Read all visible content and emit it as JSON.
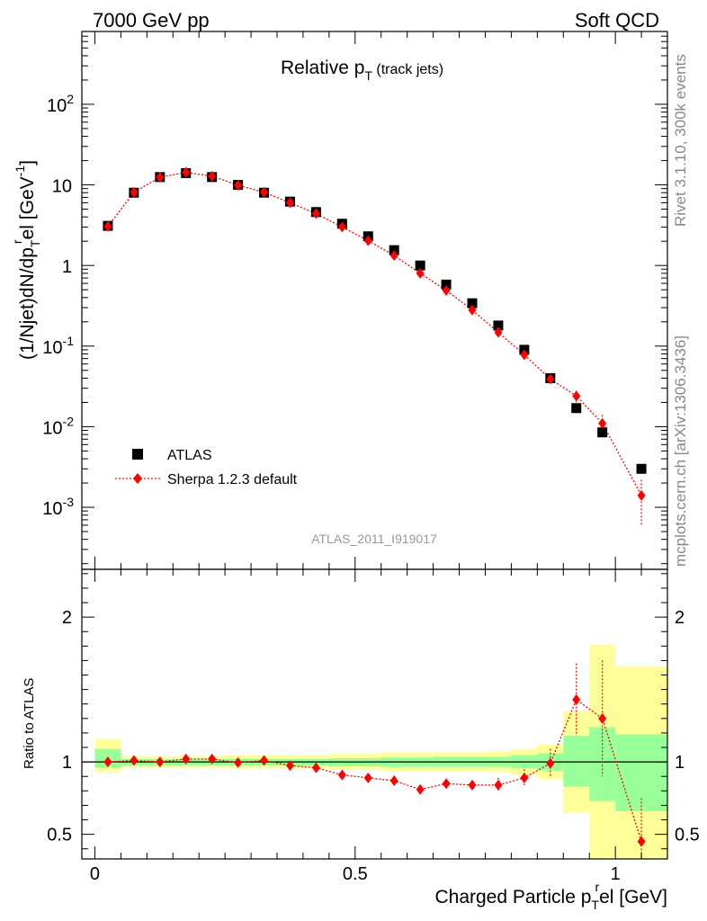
{
  "header": {
    "left": "7000 GeV pp",
    "right": "Soft QCD"
  },
  "side_labels": {
    "rivet": "Rivet 3.1.10,  300k events",
    "mcplots": "mcplots.cern.ch [arXiv:1306.3436]"
  },
  "chart_data": [
    {
      "type": "scatter",
      "title": {
        "main": "Relative p",
        "sub": "T",
        "suffix": " (track jets)"
      },
      "ylabel": {
        "p1": "(1/Njet)dN/dp",
        "sub": "T",
        "sup": "r",
        "p2": "el [GeV",
        "unit_sup": "-1",
        "p3": "]"
      },
      "yscale": "log",
      "ylim": [
        0.00017,
        800
      ],
      "xlim": [
        -0.025,
        1.1
      ],
      "y_ticks": [
        {
          "value": 0.001,
          "base": "10",
          "exp": "-3"
        },
        {
          "value": 0.01,
          "base": "10",
          "exp": "-2"
        },
        {
          "value": 0.1,
          "base": "10",
          "exp": "-1"
        },
        {
          "value": 1,
          "base": "1",
          "exp": ""
        },
        {
          "value": 10,
          "base": "10",
          "exp": ""
        },
        {
          "value": 100,
          "base": "10",
          "exp": "2"
        }
      ],
      "analysis_label": "ATLAS_2011_I919017",
      "legend": {
        "position": "lower-left",
        "entries": [
          "ATLAS",
          "Sherpa 1.2.3 default"
        ]
      },
      "series": [
        {
          "name": "ATLAS",
          "color": "#000000",
          "marker": "square",
          "x": [
            0.025,
            0.075,
            0.125,
            0.175,
            0.225,
            0.275,
            0.325,
            0.375,
            0.425,
            0.475,
            0.525,
            0.575,
            0.625,
            0.675,
            0.725,
            0.775,
            0.825,
            0.875,
            0.925,
            0.975,
            1.05
          ],
          "y": [
            3.1,
            8.0,
            12.5,
            14.0,
            12.5,
            10.0,
            8.0,
            6.2,
            4.6,
            3.3,
            2.3,
            1.55,
            1.0,
            0.58,
            0.34,
            0.18,
            0.09,
            0.04,
            0.017,
            0.0085,
            0.003
          ]
        },
        {
          "name": "Sherpa 1.2.3 default",
          "color": "#ff0000",
          "marker": "diamond",
          "line": "dotted",
          "x": [
            0.025,
            0.075,
            0.125,
            0.175,
            0.225,
            0.275,
            0.325,
            0.375,
            0.425,
            0.475,
            0.525,
            0.575,
            0.625,
            0.675,
            0.725,
            0.775,
            0.825,
            0.875,
            0.925,
            0.975,
            1.05
          ],
          "y": [
            3.05,
            8.1,
            12.4,
            14.3,
            12.8,
            9.9,
            8.1,
            6.0,
            4.4,
            3.0,
            2.03,
            1.33,
            0.8,
            0.49,
            0.28,
            0.148,
            0.078,
            0.039,
            0.024,
            0.011,
            0.0014
          ],
          "err_low": [
            0,
            0,
            0,
            0,
            0,
            0,
            0,
            0,
            0,
            0,
            0,
            0,
            0,
            0,
            0,
            0,
            0,
            0.004,
            0.004,
            0.003,
            0.0008
          ],
          "err_high": [
            0,
            0,
            0,
            0,
            0,
            0,
            0,
            0,
            0,
            0,
            0,
            0,
            0,
            0,
            0,
            0,
            0,
            0.004,
            0.004,
            0.003,
            0.0008
          ]
        }
      ]
    },
    {
      "type": "scatter",
      "ylabel": "Ratio to ATLAS",
      "xlabel": {
        "p1": "Charged Particle p",
        "sub": "T",
        "sup": "r",
        "p2": "el [GeV]"
      },
      "xlim": [
        -0.025,
        1.1
      ],
      "ylim": [
        0.33,
        2.33
      ],
      "x_ticks": [
        {
          "value": 0,
          "label": "0"
        },
        {
          "value": 0.5,
          "label": "0.5"
        },
        {
          "value": 1,
          "label": "1"
        }
      ],
      "y_ticks_left": [
        {
          "value": 0.5,
          "label": "0.5"
        },
        {
          "value": 1,
          "label": "1"
        },
        {
          "value": 2,
          "label": "2"
        }
      ],
      "y_ticks_right": [
        {
          "value": 0.5,
          "label": "0.5"
        },
        {
          "value": 1,
          "label": "1"
        },
        {
          "value": 2,
          "label": "2"
        }
      ],
      "reference_line": 1,
      "bands": {
        "bin_edges": [
          0.0,
          0.05,
          0.1,
          0.15,
          0.2,
          0.25,
          0.3,
          0.35,
          0.4,
          0.45,
          0.5,
          0.55,
          0.6,
          0.65,
          0.7,
          0.75,
          0.8,
          0.85,
          0.9,
          0.95,
          1.0,
          1.1
        ],
        "inner_low": [
          0.96,
          0.975,
          0.975,
          0.975,
          0.975,
          0.975,
          0.975,
          0.975,
          0.975,
          0.97,
          0.97,
          0.965,
          0.965,
          0.965,
          0.965,
          0.965,
          0.955,
          0.94,
          0.83,
          0.73,
          0.66
        ],
        "inner_high": [
          1.09,
          1.02,
          1.02,
          1.02,
          1.02,
          1.02,
          1.02,
          1.02,
          1.02,
          1.025,
          1.025,
          1.03,
          1.03,
          1.035,
          1.035,
          1.035,
          1.045,
          1.06,
          1.18,
          1.24,
          1.19
        ],
        "outer_low": [
          0.93,
          0.96,
          0.96,
          0.96,
          0.96,
          0.955,
          0.955,
          0.955,
          0.955,
          0.945,
          0.945,
          0.935,
          0.935,
          0.935,
          0.935,
          0.93,
          0.91,
          0.88,
          0.65,
          0.33,
          0.33
        ],
        "outer_high": [
          1.16,
          1.04,
          1.04,
          1.04,
          1.04,
          1.045,
          1.045,
          1.045,
          1.045,
          1.055,
          1.055,
          1.065,
          1.065,
          1.065,
          1.065,
          1.07,
          1.09,
          1.12,
          1.35,
          1.81,
          1.66
        ],
        "inner_color": "#99ff99",
        "outer_color": "#ffff99"
      },
      "series": [
        {
          "name": "Sherpa 1.2.3 default",
          "color": "#ff0000",
          "marker": "diamond",
          "line": "dotted",
          "x": [
            0.025,
            0.075,
            0.125,
            0.175,
            0.225,
            0.275,
            0.325,
            0.375,
            0.425,
            0.475,
            0.525,
            0.575,
            0.625,
            0.675,
            0.725,
            0.775,
            0.825,
            0.875,
            0.925,
            0.975,
            1.05
          ],
          "y": [
            1.0,
            1.01,
            1.0,
            1.02,
            1.02,
            0.995,
            1.01,
            0.975,
            0.96,
            0.91,
            0.89,
            0.87,
            0.81,
            0.85,
            0.84,
            0.84,
            0.89,
            0.99,
            1.43,
            1.3,
            0.45
          ],
          "err_low": [
            0,
            0,
            0,
            0,
            0,
            0,
            0,
            0,
            0,
            0.02,
            0.02,
            0.02,
            0.03,
            0.03,
            0.03,
            0.05,
            0.06,
            0.1,
            0.25,
            0.4,
            0.2
          ],
          "err_high": [
            0,
            0,
            0,
            0,
            0,
            0,
            0,
            0,
            0,
            0.02,
            0.02,
            0.02,
            0.03,
            0.03,
            0.03,
            0.05,
            0.06,
            0.1,
            0.25,
            0.4,
            0.3
          ]
        }
      ]
    }
  ]
}
